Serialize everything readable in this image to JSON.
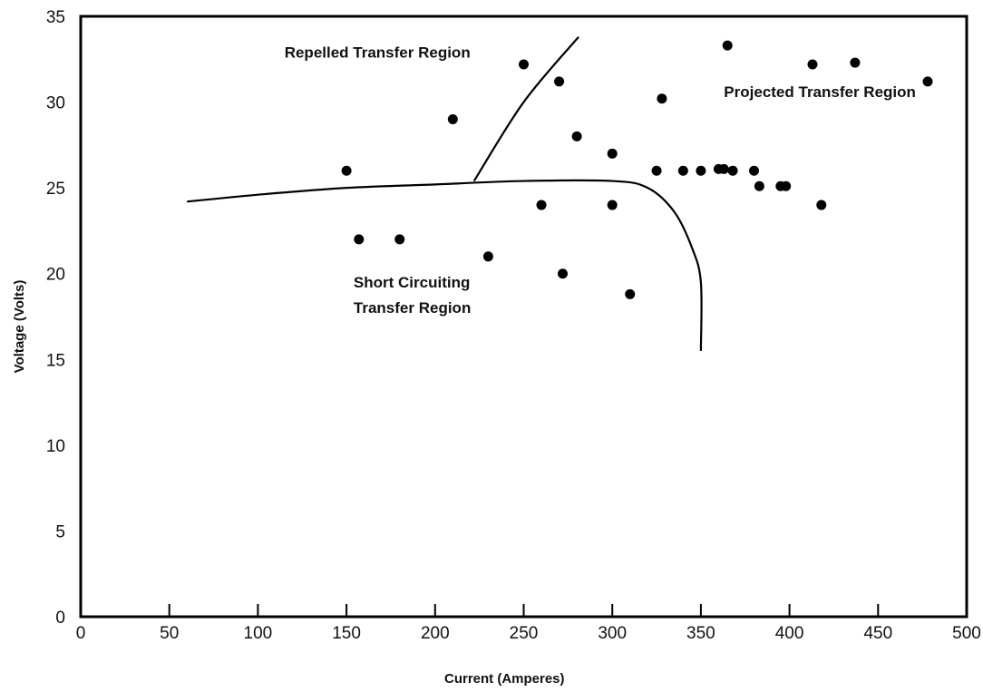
{
  "chart_data": {
    "type": "scatter",
    "title": "",
    "xlabel": "Current (Amperes)",
    "ylabel": "Voltage (Volts)",
    "xlim": [
      0,
      500
    ],
    "ylim": [
      0,
      35
    ],
    "x_ticks": [
      "0",
      "50",
      "100",
      "150",
      "200",
      "250",
      "300",
      "350",
      "400",
      "450",
      "500"
    ],
    "y_ticks": [
      "0",
      "5",
      "10",
      "15",
      "20",
      "25",
      "30",
      "35"
    ],
    "grid": false,
    "legend": "none",
    "points": [
      {
        "x": 150,
        "y": 26
      },
      {
        "x": 157,
        "y": 22
      },
      {
        "x": 180,
        "y": 22
      },
      {
        "x": 210,
        "y": 29
      },
      {
        "x": 230,
        "y": 21
      },
      {
        "x": 250,
        "y": 32.2
      },
      {
        "x": 260,
        "y": 24
      },
      {
        "x": 270,
        "y": 31.2
      },
      {
        "x": 272,
        "y": 20
      },
      {
        "x": 280,
        "y": 28
      },
      {
        "x": 300,
        "y": 27
      },
      {
        "x": 300,
        "y": 24
      },
      {
        "x": 310,
        "y": 18.8
      },
      {
        "x": 325,
        "y": 26
      },
      {
        "x": 328,
        "y": 30.2
      },
      {
        "x": 340,
        "y": 26
      },
      {
        "x": 350,
        "y": 26
      },
      {
        "x": 360,
        "y": 26.1
      },
      {
        "x": 363,
        "y": 26.1
      },
      {
        "x": 365,
        "y": 33.3
      },
      {
        "x": 368,
        "y": 26
      },
      {
        "x": 380,
        "y": 26
      },
      {
        "x": 383,
        "y": 25.1
      },
      {
        "x": 395,
        "y": 25.1
      },
      {
        "x": 398,
        "y": 25.1
      },
      {
        "x": 413,
        "y": 32.2
      },
      {
        "x": 418,
        "y": 24
      },
      {
        "x": 437,
        "y": 32.3
      },
      {
        "x": 478,
        "y": 31.2
      }
    ],
    "boundaries": [
      {
        "name": "upper-boundary",
        "x": [
          60,
          100,
          150,
          200,
          250,
          300,
          320,
          335,
          345,
          350,
          350
        ],
        "y": [
          24.2,
          24.6,
          25.0,
          25.2,
          25.4,
          25.4,
          25.0,
          23.6,
          21.5,
          19.5,
          15.5
        ]
      },
      {
        "name": "repelled-projected-boundary",
        "x": [
          222,
          250,
          281
        ],
        "y": [
          25.4,
          30.0,
          33.8
        ]
      }
    ],
    "annotations": [
      {
        "text": "Repelled Transfer Region",
        "x": 115,
        "y": 32.6
      },
      {
        "text": "Projected Transfer Region",
        "x": 363,
        "y": 30.3
      },
      {
        "text": "Short Circuiting",
        "x": 154,
        "y": 19.2
      },
      {
        "text": "Transfer Region",
        "x": 154,
        "y": 17.7
      }
    ]
  }
}
